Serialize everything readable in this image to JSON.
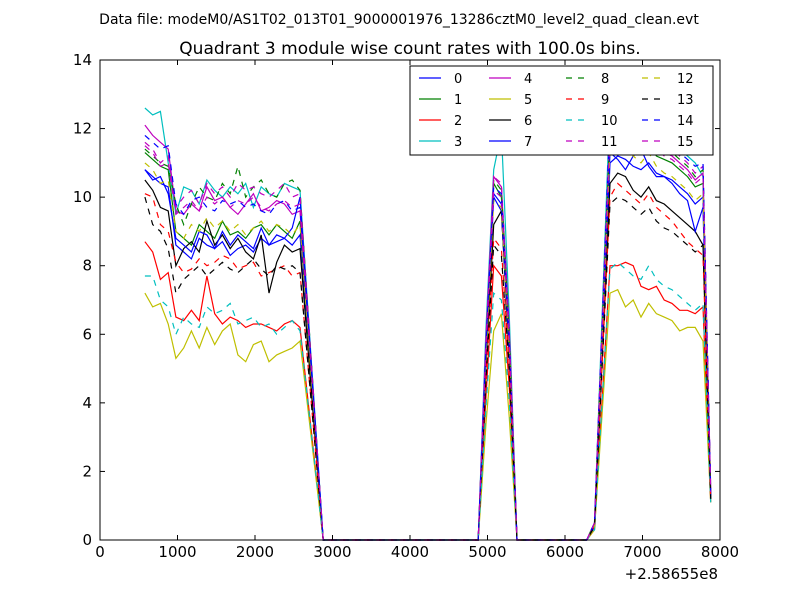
{
  "header": {
    "suptitle": "Data file: modeM0/AS1T02_013T01_9000001976_13286cztM0_level2_quad_clean.evt"
  },
  "chart_data": {
    "type": "line",
    "title": "Quadrant 3 module wise count rates with 100.0s bins.",
    "xlabel": "",
    "ylabel": "",
    "xlim": [
      0,
      8000
    ],
    "ylim": [
      0,
      14
    ],
    "x_ticks": [
      "0",
      "1000",
      "2000",
      "3000",
      "4000",
      "5000",
      "6000",
      "7000",
      "8000"
    ],
    "y_ticks": [
      "0",
      "2",
      "4",
      "6",
      "8",
      "10",
      "12",
      "14"
    ],
    "x_offset_label": "+2.58655e8",
    "legend": {
      "position": "top-right",
      "columns": 4
    },
    "segments": [
      {
        "x_start": 580,
        "step": 100,
        "count": 21
      },
      {
        "x_start": 2880,
        "step": 100,
        "count": 20
      },
      {
        "x_start": 4880,
        "step": 100,
        "count": 6
      },
      {
        "x_start": 5480,
        "step": 100,
        "count": 10
      },
      {
        "x_start": 6580,
        "step": 100,
        "count": 14
      }
    ],
    "series": [
      {
        "name": "0",
        "color": "#0000ff",
        "dashed": false,
        "values": [
          10.8,
          10.6,
          10.4,
          10.3,
          8.6,
          8.4,
          8.2,
          8.8,
          8.6,
          8.5,
          8.7,
          8.3,
          8.5,
          8.6,
          8.4,
          8.8,
          8.6,
          8.7,
          8.8,
          8.6,
          8.9,
          0,
          0,
          0,
          0,
          0,
          0,
          0,
          0,
          0,
          0,
          0,
          0,
          0,
          0,
          0,
          0,
          0,
          0,
          0,
          0,
          0,
          5.2,
          10.0,
          9.6,
          5.5,
          0,
          0,
          0,
          0,
          0,
          0,
          0,
          0,
          0,
          0,
          0.4,
          11.0,
          11.2,
          11.1,
          10.9,
          10.8,
          11.0,
          10.7,
          10.6,
          10.5,
          10.3,
          10.1,
          9.8,
          10.0,
          1.2
        ]
      },
      {
        "name": "1",
        "color": "#008000",
        "dashed": false,
        "values": [
          11.3,
          11.1,
          10.9,
          10.8,
          9.0,
          8.8,
          8.6,
          9.2,
          9.0,
          8.8,
          9.3,
          8.9,
          9.0,
          8.8,
          9.1,
          9.2,
          8.9,
          9.2,
          9.0,
          8.8,
          9.3,
          0,
          0,
          0,
          0,
          0,
          0,
          0,
          0,
          0,
          0,
          0,
          0,
          0,
          0,
          0,
          0,
          0,
          0,
          0,
          0,
          0,
          5.5,
          10.4,
          10.0,
          5.8,
          0,
          0,
          0,
          0,
          0,
          0,
          0,
          0,
          0,
          0,
          0.4,
          11.7,
          11.9,
          11.6,
          11.5,
          11.3,
          11.6,
          11.2,
          11.1,
          11.0,
          10.8,
          10.6,
          10.3,
          10.4,
          1.3
        ]
      },
      {
        "name": "2",
        "color": "#ff0000",
        "dashed": false,
        "values": [
          8.7,
          8.4,
          7.6,
          7.8,
          6.5,
          6.4,
          6.7,
          6.4,
          7.7,
          6.6,
          6.3,
          6.5,
          6.4,
          6.2,
          6.3,
          6.3,
          6.2,
          6.1,
          6.3,
          6.4,
          6.2,
          0,
          0,
          0,
          0,
          0,
          0,
          0,
          0,
          0,
          0,
          0,
          0,
          0,
          0,
          0,
          0,
          0,
          0,
          0,
          0,
          0,
          4.2,
          8.0,
          7.7,
          4.5,
          0,
          0,
          0,
          0,
          0,
          0,
          0,
          0,
          0,
          0,
          0.3,
          8.0,
          8.0,
          8.1,
          8.0,
          7.4,
          7.3,
          7.4,
          7.0,
          6.9,
          6.7,
          6.7,
          6.6,
          6.8,
          1.1
        ]
      },
      {
        "name": "3",
        "color": "#00bfbf",
        "dashed": false,
        "values": [
          12.6,
          12.4,
          12.5,
          11.0,
          9.5,
          10.3,
          10.2,
          9.8,
          10.5,
          10.2,
          10.0,
          10.3,
          10.1,
          10.4,
          9.7,
          10.3,
          10.1,
          10.0,
          10.4,
          10.3,
          10.2,
          0,
          0,
          0,
          0,
          0,
          0,
          0,
          0,
          0,
          0,
          0,
          0,
          0,
          0,
          0,
          0,
          0,
          0,
          0,
          0,
          0,
          6.2,
          10.8,
          11.9,
          6.6,
          0,
          0,
          0,
          0,
          0,
          0,
          0,
          0,
          0,
          0,
          0.5,
          12.8,
          13.0,
          12.2,
          12.1,
          12.0,
          11.8,
          12.3,
          11.6,
          11.7,
          11.4,
          11.2,
          11.0,
          10.6,
          1.4
        ]
      },
      {
        "name": "4",
        "color": "#bf00bf",
        "dashed": false,
        "values": [
          12.1,
          11.8,
          11.6,
          11.4,
          9.6,
          9.5,
          9.8,
          9.6,
          10.3,
          9.9,
          10.0,
          9.7,
          9.5,
          9.8,
          10.1,
          9.6,
          9.7,
          9.9,
          9.8,
          9.5,
          9.6,
          0,
          0,
          0,
          0,
          0,
          0,
          0,
          0,
          0,
          0,
          0,
          0,
          0,
          0,
          0,
          0,
          0,
          0,
          0,
          0,
          0,
          5.9,
          10.6,
          10.3,
          6.2,
          0,
          0,
          0,
          0,
          0,
          0,
          0,
          0,
          0,
          0,
          0.5,
          12.0,
          12.2,
          11.7,
          11.8,
          11.9,
          11.6,
          11.4,
          11.3,
          11.2,
          11.0,
          10.8,
          10.5,
          10.7,
          1.5
        ]
      },
      {
        "name": "5",
        "color": "#bfbf00",
        "dashed": false,
        "values": [
          7.2,
          6.8,
          6.9,
          6.3,
          5.3,
          5.6,
          6.1,
          5.6,
          6.2,
          5.7,
          6.1,
          6.3,
          5.4,
          5.2,
          5.7,
          5.8,
          5.2,
          5.4,
          5.5,
          5.6,
          5.8,
          0,
          0,
          0,
          0,
          0,
          0,
          0,
          0,
          0,
          0,
          0,
          0,
          0,
          0,
          0,
          0,
          0,
          0,
          0,
          0,
          0,
          3.4,
          6.1,
          6.6,
          3.6,
          0,
          0,
          0,
          0,
          0,
          0,
          0,
          0,
          0,
          0,
          0.3,
          7.2,
          7.3,
          6.8,
          7.0,
          6.5,
          6.9,
          6.6,
          6.5,
          6.4,
          6.1,
          6.2,
          6.2,
          5.8,
          1.1
        ]
      },
      {
        "name": "6",
        "color": "#000000",
        "dashed": false,
        "values": [
          10.5,
          10.2,
          9.7,
          9.6,
          8.0,
          8.5,
          8.7,
          8.4,
          9.3,
          8.6,
          8.9,
          8.5,
          8.8,
          8.4,
          8.2,
          8.9,
          7.2,
          8.1,
          8.6,
          8.4,
          8.5,
          0,
          0,
          0,
          0,
          0,
          0,
          0,
          0,
          0,
          0,
          0,
          0,
          0,
          0,
          0,
          0,
          0,
          0,
          0,
          0,
          0,
          5.1,
          9.2,
          9.6,
          5.4,
          0,
          0,
          0,
          0,
          0,
          0,
          0,
          0,
          0,
          0,
          0.4,
          10.4,
          10.7,
          10.6,
          10.2,
          10.0,
          10.3,
          9.9,
          9.8,
          9.6,
          9.4,
          9.2,
          9.0,
          8.6,
          1.2
        ]
      },
      {
        "name": "7",
        "color": "#0000ff",
        "dashed": false,
        "values": [
          10.8,
          10.5,
          10.6,
          10.1,
          8.8,
          8.6,
          8.4,
          9.0,
          8.9,
          8.5,
          9.0,
          8.6,
          8.9,
          8.7,
          8.5,
          9.1,
          8.6,
          8.9,
          8.8,
          9.1,
          10.0,
          0,
          0,
          0,
          0,
          0,
          0,
          0,
          0,
          0,
          0,
          0,
          0,
          0,
          0,
          0,
          0,
          0,
          0,
          0,
          0,
          0,
          5.5,
          10.1,
          9.8,
          5.6,
          0,
          0,
          0,
          0,
          0,
          0,
          0,
          0,
          0,
          0,
          0.4,
          11.3,
          11.1,
          10.8,
          11.2,
          11.4,
          10.9,
          10.6,
          10.6,
          10.4,
          10.1,
          9.9,
          9.0,
          9.7,
          1.3
        ]
      },
      {
        "name": "8",
        "color": "#008000",
        "dashed": true,
        "values": [
          11.4,
          11.2,
          11.0,
          10.9,
          9.8,
          9.2,
          9.8,
          10.3,
          10.0,
          9.9,
          10.4,
          10.1,
          10.9,
          10.0,
          10.3,
          10.5,
          10.1,
          10.0,
          10.4,
          10.5,
          10.2,
          0,
          0,
          0,
          0,
          0,
          0,
          0,
          0,
          0,
          0,
          0,
          0,
          0,
          0,
          0,
          0,
          0,
          0,
          0,
          0,
          0,
          5.7,
          10.5,
          10.2,
          6.0,
          0,
          0,
          0,
          0,
          0,
          0,
          0,
          0,
          0,
          0,
          0.5,
          12.0,
          12.3,
          12.1,
          11.9,
          11.7,
          12.0,
          11.6,
          11.4,
          11.3,
          11.1,
          10.9,
          10.6,
          10.8,
          1.4
        ]
      },
      {
        "name": "9",
        "color": "#ff0000",
        "dashed": true,
        "values": [
          10.1,
          10.0,
          9.2,
          9.0,
          8.1,
          7.8,
          7.9,
          8.2,
          8.0,
          8.1,
          8.3,
          8.2,
          7.9,
          8.0,
          8.1,
          7.7,
          7.8,
          7.9,
          8.0,
          7.7,
          7.8,
          0,
          0,
          0,
          0,
          0,
          0,
          0,
          0,
          0,
          0,
          0,
          0,
          0,
          0,
          0,
          0,
          0,
          0,
          0,
          0,
          0,
          4.8,
          8.8,
          8.5,
          5.1,
          0,
          0,
          0,
          0,
          0,
          0,
          0,
          0,
          0,
          0,
          0.4,
          10.0,
          10.4,
          10.2,
          10.0,
          9.8,
          10.1,
          9.7,
          9.5,
          9.3,
          9.0,
          8.7,
          8.5,
          8.3,
          1.2
        ]
      },
      {
        "name": "10",
        "color": "#00bfbf",
        "dashed": true,
        "values": [
          7.7,
          7.7,
          7.0,
          6.8,
          6.0,
          6.5,
          6.3,
          6.2,
          6.8,
          6.6,
          6.7,
          6.9,
          6.3,
          6.4,
          6.5,
          6.2,
          6.3,
          6.0,
          6.2,
          6.4,
          6.1,
          0,
          0,
          0,
          0,
          0,
          0,
          0,
          0,
          0,
          0,
          0,
          0,
          0,
          0,
          0,
          0,
          0,
          0,
          0,
          0,
          0,
          3.9,
          7.2,
          7.0,
          4.1,
          0,
          0,
          0,
          0,
          0,
          0,
          0,
          0,
          0,
          0,
          0.3,
          7.9,
          8.1,
          7.9,
          7.7,
          7.6,
          8.0,
          7.6,
          7.4,
          7.3,
          7.1,
          6.9,
          6.7,
          6.9,
          1.1
        ]
      },
      {
        "name": "11",
        "color": "#bf00bf",
        "dashed": true,
        "values": [
          11.6,
          11.4,
          11.0,
          11.2,
          9.7,
          10.0,
          10.2,
          9.8,
          10.4,
          10.1,
          10.3,
          10.0,
          10.4,
          10.2,
          10.3,
          10.1,
          10.0,
          10.2,
          10.4,
          10.0,
          10.1,
          0,
          0,
          0,
          0,
          0,
          0,
          0,
          0,
          0,
          0,
          0,
          0,
          0,
          0,
          0,
          0,
          0,
          0,
          0,
          0,
          0,
          5.8,
          10.6,
          10.4,
          6.1,
          0,
          0,
          0,
          0,
          0,
          0,
          0,
          0,
          0,
          0,
          0.5,
          12.2,
          12.4,
          12.3,
          12.0,
          11.8,
          12.1,
          11.9,
          11.6,
          11.4,
          11.2,
          11.0,
          10.7,
          10.9,
          1.5
        ]
      },
      {
        "name": "12",
        "color": "#bfbf00",
        "dashed": true,
        "values": [
          11.0,
          10.8,
          10.4,
          10.5,
          9.0,
          8.8,
          9.2,
          9.0,
          9.4,
          9.1,
          9.3,
          9.0,
          9.2,
          8.9,
          9.1,
          9.3,
          9.0,
          9.2,
          9.1,
          8.9,
          9.2,
          0,
          0,
          0,
          0,
          0,
          0,
          0,
          0,
          0,
          0,
          0,
          0,
          0,
          0,
          0,
          0,
          0,
          0,
          0,
          0,
          0,
          5.3,
          9.9,
          9.7,
          5.6,
          0,
          0,
          0,
          0,
          0,
          0,
          0,
          0,
          0,
          0,
          0.4,
          11.4,
          11.6,
          11.5,
          11.2,
          11.0,
          11.3,
          10.9,
          10.7,
          10.6,
          10.4,
          10.2,
          9.9,
          10.1,
          1.3
        ]
      },
      {
        "name": "13",
        "color": "#000000",
        "dashed": true,
        "values": [
          10.0,
          9.2,
          9.0,
          8.5,
          7.2,
          7.6,
          7.8,
          8.0,
          7.7,
          7.9,
          8.1,
          7.9,
          7.8,
          8.0,
          8.2,
          7.9,
          7.7,
          8.0,
          7.9,
          8.0,
          7.8,
          0,
          0,
          0,
          0,
          0,
          0,
          0,
          0,
          0,
          0,
          0,
          0,
          0,
          0,
          0,
          0,
          0,
          0,
          0,
          0,
          0,
          4.7,
          8.6,
          8.3,
          5.0,
          0,
          0,
          0,
          0,
          0,
          0,
          0,
          0,
          0,
          0,
          0.4,
          9.8,
          10.0,
          9.9,
          9.7,
          9.5,
          9.7,
          9.3,
          9.1,
          9.0,
          8.8,
          8.6,
          8.4,
          8.6,
          1.2
        ]
      },
      {
        "name": "14",
        "color": "#0000ff",
        "dashed": true,
        "values": [
          11.8,
          11.6,
          11.4,
          11.5,
          9.8,
          9.5,
          9.9,
          10.0,
          9.7,
          9.6,
          9.9,
          9.8,
          9.9,
          9.7,
          9.8,
          9.6,
          9.5,
          9.8,
          9.9,
          9.6,
          9.7,
          0,
          0,
          0,
          0,
          0,
          0,
          0,
          0,
          0,
          0,
          0,
          0,
          0,
          0,
          0,
          0,
          0,
          0,
          0,
          0,
          0,
          5.7,
          10.3,
          10.1,
          5.9,
          0,
          0,
          0,
          0,
          0,
          0,
          0,
          0,
          0,
          0,
          0.5,
          12.4,
          12.5,
          12.3,
          12.2,
          12.1,
          11.8,
          11.7,
          11.9,
          11.6,
          11.3,
          11.1,
          10.9,
          11.0,
          1.4
        ]
      },
      {
        "name": "15",
        "color": "#bf00bf",
        "dashed": true,
        "values": [
          11.5,
          11.3,
          10.9,
          11.0,
          9.5,
          9.7,
          9.9,
          9.6,
          10.0,
          9.8,
          10.0,
          9.7,
          9.9,
          9.8,
          10.0,
          9.7,
          9.6,
          9.8,
          9.9,
          9.7,
          9.8,
          0,
          0,
          0,
          0,
          0,
          0,
          0,
          0,
          0,
          0,
          0,
          0,
          0,
          0,
          0,
          0,
          0,
          0,
          0,
          0,
          0,
          5.6,
          10.2,
          10.0,
          5.8,
          0,
          0,
          0,
          0,
          0,
          0,
          0,
          0,
          0,
          0,
          0.5,
          11.9,
          12.1,
          11.8,
          11.7,
          11.6,
          11.8,
          11.4,
          11.2,
          11.1,
          10.9,
          10.7,
          10.4,
          10.6,
          1.4
        ]
      }
    ]
  }
}
